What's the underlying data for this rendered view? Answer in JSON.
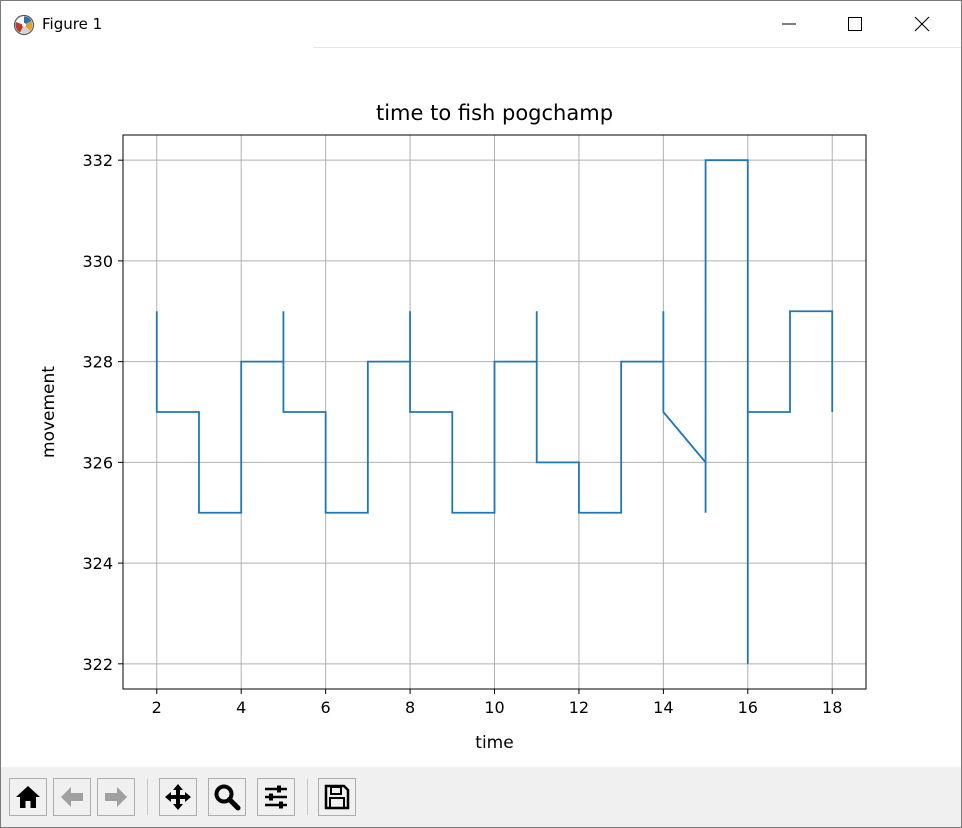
{
  "window": {
    "title": "Figure 1"
  },
  "toolbar": {
    "buttons": [
      {
        "name": "home-button",
        "icon": "home-icon"
      },
      {
        "name": "back-button",
        "icon": "arrow-left-icon"
      },
      {
        "name": "forward-button",
        "icon": "arrow-right-icon"
      },
      {
        "name": "pan-button",
        "icon": "move-icon"
      },
      {
        "name": "zoom-button",
        "icon": "magnifier-icon"
      },
      {
        "name": "configure-subplots-button",
        "icon": "sliders-icon"
      },
      {
        "name": "save-button",
        "icon": "floppy-disk-icon"
      }
    ]
  },
  "chart_data": {
    "type": "line",
    "title": "time to fish pogchamp",
    "xlabel": "time",
    "ylabel": "movement",
    "xlim": [
      1.2,
      18.8
    ],
    "ylim": [
      321.5,
      332.5
    ],
    "xticks": [
      2,
      4,
      6,
      8,
      10,
      12,
      14,
      16,
      18
    ],
    "yticks": [
      322,
      324,
      326,
      328,
      330,
      332
    ],
    "grid": true,
    "color": "#1f77b4",
    "series": [
      {
        "points": [
          [
            2,
            329
          ],
          [
            2,
            327
          ],
          [
            3,
            327
          ],
          [
            3,
            325
          ],
          [
            4,
            325
          ],
          [
            4,
            328
          ],
          [
            5,
            328
          ],
          [
            5,
            329
          ],
          [
            5,
            327
          ],
          [
            6,
            327
          ],
          [
            6,
            325
          ],
          [
            7,
            325
          ],
          [
            7,
            328
          ],
          [
            8,
            328
          ],
          [
            8,
            329
          ],
          [
            8,
            327
          ],
          [
            9,
            327
          ],
          [
            9,
            325
          ],
          [
            10,
            325
          ],
          [
            10,
            328
          ],
          [
            11,
            328
          ],
          [
            11,
            329
          ],
          [
            11,
            326
          ],
          [
            12,
            326
          ],
          [
            12,
            325
          ],
          [
            13,
            325
          ],
          [
            13,
            328
          ],
          [
            14,
            328
          ],
          [
            14,
            329
          ],
          [
            14,
            327
          ],
          [
            15,
            326
          ],
          [
            15,
            325
          ],
          [
            15,
            332
          ],
          [
            16,
            332
          ],
          [
            16,
            322
          ],
          [
            16,
            327
          ],
          [
            17,
            327
          ],
          [
            17,
            329
          ],
          [
            18,
            329
          ],
          [
            18,
            327
          ]
        ]
      }
    ]
  }
}
